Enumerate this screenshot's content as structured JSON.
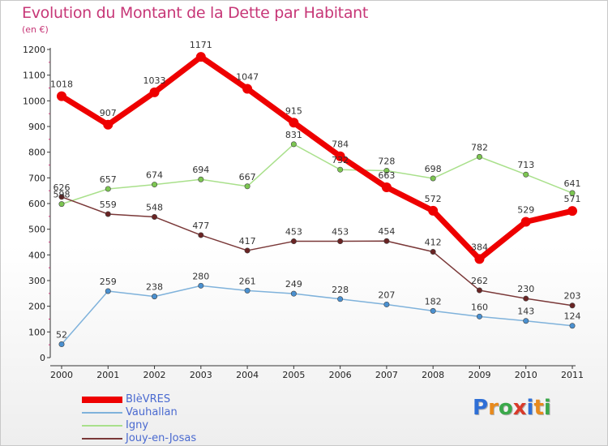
{
  "header": {
    "title": "Evolution du Montant de la Dette par Habitant",
    "subtitle": "(en €)"
  },
  "logo": {
    "letters": [
      "P",
      "r",
      "o",
      "x",
      "i",
      "t",
      "i"
    ],
    "colors": [
      "#2f6fd6",
      "#e88a1c",
      "#3aa84a",
      "#d83a2a",
      "#2f6fd6",
      "#e88a1c",
      "#3aa84a"
    ]
  },
  "chart_data": {
    "type": "line",
    "title": "Evolution du Montant de la Dette par Habitant",
    "subtitle": "(en €)",
    "xlabel": "",
    "ylabel": "",
    "x": [
      "2000",
      "2001",
      "2002",
      "2003",
      "2004",
      "2005",
      "2006",
      "2007",
      "2008",
      "2009",
      "2010",
      "2011"
    ],
    "ylim": [
      0,
      1200
    ],
    "yticks": [
      0,
      100,
      200,
      300,
      400,
      500,
      600,
      700,
      800,
      900,
      1000,
      1100,
      1200
    ],
    "grid": false,
    "legend_position": "bottom-left",
    "series": [
      {
        "name": "BIèVRES",
        "color": "#ee0000",
        "marker_color": "#ee0000",
        "width": 7,
        "marker_r": 6,
        "values": [
          1018,
          907,
          1033,
          1171,
          1047,
          915,
          784,
          663,
          572,
          384,
          529,
          571
        ]
      },
      {
        "name": "Vauhallan",
        "color": "#7fb2db",
        "marker_color": "#4a90d0",
        "width": 1.5,
        "marker_r": 3.2,
        "values": [
          52,
          259,
          238,
          280,
          261,
          249,
          228,
          207,
          182,
          160,
          143,
          124
        ]
      },
      {
        "name": "Igny",
        "color": "#a9e08b",
        "marker_color": "#7cc651",
        "width": 1.5,
        "marker_r": 3.2,
        "values": [
          598,
          657,
          674,
          694,
          667,
          831,
          732,
          728,
          698,
          782,
          713,
          641
        ]
      },
      {
        "name": "Jouy-en-Josas",
        "color": "#7a3838",
        "marker_color": "#6a2424",
        "width": 1.5,
        "marker_r": 3.2,
        "values": [
          626,
          559,
          548,
          477,
          417,
          453,
          453,
          454,
          412,
          262,
          230,
          203
        ]
      }
    ]
  }
}
